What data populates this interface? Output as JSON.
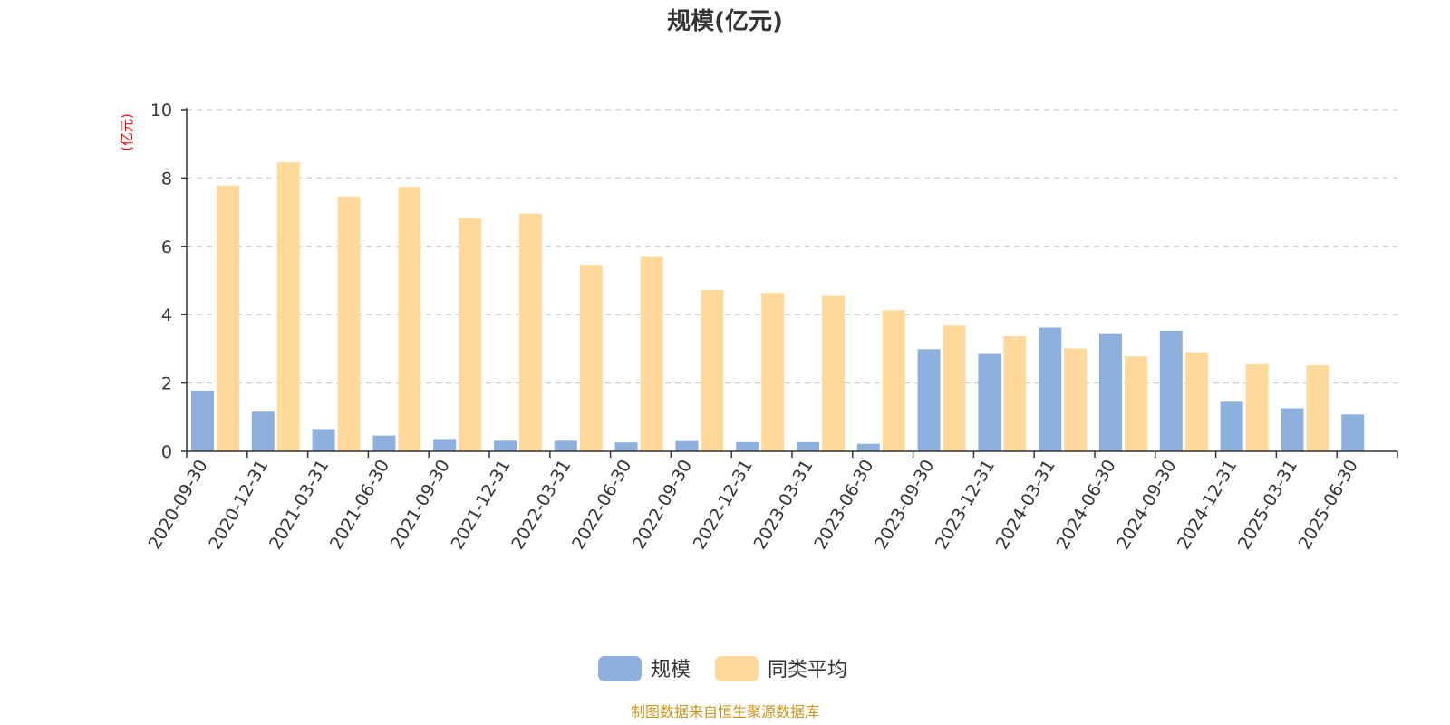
{
  "chart_data": {
    "type": "bar",
    "title": "规模(亿元)",
    "ylabel": "(亿元)",
    "ylim": [
      0,
      10
    ],
    "yticks": [
      "0",
      "2",
      "4",
      "6",
      "8",
      "10"
    ],
    "grid": true,
    "legend_position": "bottom-center",
    "categories": [
      "2020-09-30",
      "2020-12-31",
      "2021-03-31",
      "2021-06-30",
      "2021-09-30",
      "2021-12-31",
      "2022-03-31",
      "2022-06-30",
      "2022-09-30",
      "2022-12-31",
      "2023-03-31",
      "2023-06-30",
      "2023-09-30",
      "2023-12-31",
      "2024-03-31",
      "2024-06-30",
      "2024-09-30",
      "2024-12-31",
      "2025-03-31",
      "2025-06-30"
    ],
    "series": [
      {
        "name": "规模",
        "color": "#8eb0dd",
        "values": [
          1.78,
          1.16,
          0.65,
          0.46,
          0.36,
          0.31,
          0.31,
          0.26,
          0.3,
          0.27,
          0.27,
          0.22,
          2.99,
          2.85,
          3.62,
          3.43,
          3.53,
          1.45,
          1.26,
          1.08
        ]
      },
      {
        "name": "同类平均",
        "color": "#ffd99b",
        "values": [
          7.78,
          8.46,
          7.46,
          7.74,
          6.83,
          6.96,
          5.46,
          5.69,
          4.72,
          4.64,
          4.55,
          4.13,
          3.68,
          3.37,
          3.01,
          2.78,
          2.9,
          2.55,
          2.52,
          null
        ]
      }
    ]
  },
  "source_text": "制图数据来自恒生聚源数据库",
  "colors": {
    "title": "#333333",
    "unit_label": "#ee1111",
    "source": "#c8961e",
    "grid": "#cccccc",
    "axis": "#333333"
  }
}
